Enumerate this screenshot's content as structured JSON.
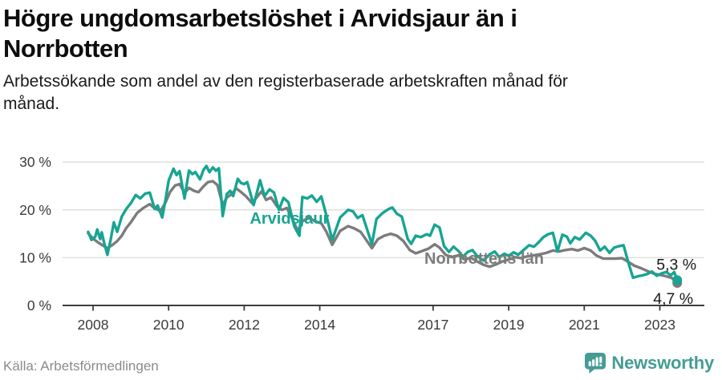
{
  "header": {
    "title": "Högre ungdomsarbetslöshet i Arvidsjaur än i Norrbotten",
    "subtitle": "Arbetssökande som andel av den registerbaserade arbetskraften månad för månad."
  },
  "footer": {
    "source": "Källa: Arbetsförmedlingen",
    "brand": "Newsworthy",
    "brand_color": "#449c94"
  },
  "chart_data": {
    "type": "line",
    "unit": "%",
    "grid": true,
    "x_axis": {
      "ticks": [
        2008,
        2010,
        2012,
        2014,
        2017,
        2019,
        2021,
        2023
      ],
      "labels": [
        "2008",
        "2010",
        "2012",
        "2014",
        "2017",
        "2019",
        "2021",
        "2023"
      ],
      "range_years": [
        2007.2,
        2024.2
      ]
    },
    "y_axis": {
      "ticks": [
        0,
        10,
        20,
        30
      ],
      "labels": [
        "0 %",
        "10 %",
        "20 %",
        "30 %"
      ],
      "range": [
        0,
        33
      ]
    },
    "series": [
      {
        "name": "Arvidsjaur",
        "color": "#18a493",
        "end_label": "5,3 %",
        "end_value": 5.3,
        "points": [
          [
            2007.87,
            15.4
          ],
          [
            2007.96,
            13.7
          ],
          [
            2008.06,
            14.4
          ],
          [
            2008.11,
            15.9
          ],
          [
            2008.19,
            13.9
          ],
          [
            2008.23,
            15.3
          ],
          [
            2008.3,
            12.9
          ],
          [
            2008.38,
            10.6
          ],
          [
            2008.47,
            13.9
          ],
          [
            2008.55,
            17.4
          ],
          [
            2008.64,
            15.4
          ],
          [
            2008.76,
            18.6
          ],
          [
            2008.88,
            20.2
          ],
          [
            2009.0,
            21.4
          ],
          [
            2009.13,
            23.1
          ],
          [
            2009.25,
            22.4
          ],
          [
            2009.38,
            23.4
          ],
          [
            2009.5,
            23.6
          ],
          [
            2009.63,
            20.2
          ],
          [
            2009.71,
            20.9
          ],
          [
            2009.83,
            18.4
          ],
          [
            2009.92,
            22.2
          ],
          [
            2010.0,
            26.1
          ],
          [
            2010.13,
            28.6
          ],
          [
            2010.21,
            27.3
          ],
          [
            2010.29,
            28.1
          ],
          [
            2010.42,
            22.4
          ],
          [
            2010.54,
            28.2
          ],
          [
            2010.63,
            27.5
          ],
          [
            2010.71,
            27.9
          ],
          [
            2010.83,
            26.4
          ],
          [
            2010.92,
            28.3
          ],
          [
            2011.0,
            29.2
          ],
          [
            2011.08,
            27.9
          ],
          [
            2011.17,
            28.9
          ],
          [
            2011.25,
            28.2
          ],
          [
            2011.33,
            28.7
          ],
          [
            2011.43,
            18.7
          ],
          [
            2011.54,
            23.3
          ],
          [
            2011.63,
            24.0
          ],
          [
            2011.71,
            22.9
          ],
          [
            2011.83,
            26.5
          ],
          [
            2011.92,
            25.6
          ],
          [
            2012.0,
            25.4
          ],
          [
            2012.08,
            25.8
          ],
          [
            2012.25,
            21.0
          ],
          [
            2012.42,
            26.2
          ],
          [
            2012.54,
            22.9
          ],
          [
            2012.67,
            24.3
          ],
          [
            2012.79,
            23.6
          ],
          [
            2012.92,
            20.0
          ],
          [
            2013.04,
            22.5
          ],
          [
            2013.17,
            21.6
          ],
          [
            2013.33,
            16.5
          ],
          [
            2013.46,
            14.6
          ],
          [
            2013.54,
            22.7
          ],
          [
            2013.67,
            22.4
          ],
          [
            2013.79,
            23.0
          ],
          [
            2013.92,
            21.7
          ],
          [
            2014.04,
            22.8
          ],
          [
            2014.17,
            19.0
          ],
          [
            2014.33,
            13.7
          ],
          [
            2014.54,
            18.4
          ],
          [
            2014.75,
            20.0
          ],
          [
            2014.88,
            19.7
          ],
          [
            2015.0,
            18.3
          ],
          [
            2015.13,
            18.9
          ],
          [
            2015.38,
            12.8
          ],
          [
            2015.5,
            18.1
          ],
          [
            2015.67,
            19.4
          ],
          [
            2015.83,
            20.2
          ],
          [
            2015.92,
            20.5
          ],
          [
            2016.04,
            19.2
          ],
          [
            2016.17,
            18.6
          ],
          [
            2016.33,
            13.9
          ],
          [
            2016.42,
            12.9
          ],
          [
            2016.54,
            14.6
          ],
          [
            2016.67,
            14.3
          ],
          [
            2016.83,
            14.9
          ],
          [
            2016.92,
            14.6
          ],
          [
            2017.04,
            16.9
          ],
          [
            2017.17,
            16.3
          ],
          [
            2017.29,
            12.4
          ],
          [
            2017.42,
            11.2
          ],
          [
            2017.54,
            12.3
          ],
          [
            2017.67,
            11.4
          ],
          [
            2017.79,
            10.2
          ],
          [
            2017.92,
            11.2
          ],
          [
            2018.04,
            11.6
          ],
          [
            2018.17,
            10.3
          ],
          [
            2018.33,
            9.4
          ],
          [
            2018.5,
            10.7
          ],
          [
            2018.63,
            11.3
          ],
          [
            2018.75,
            10.1
          ],
          [
            2018.88,
            10.8
          ],
          [
            2019.0,
            10.4
          ],
          [
            2019.13,
            11.1
          ],
          [
            2019.25,
            10.6
          ],
          [
            2019.42,
            11.8
          ],
          [
            2019.54,
            12.6
          ],
          [
            2019.67,
            12.3
          ],
          [
            2019.79,
            13.2
          ],
          [
            2019.92,
            14.3
          ],
          [
            2020.04,
            14.9
          ],
          [
            2020.17,
            15.2
          ],
          [
            2020.29,
            11.3
          ],
          [
            2020.42,
            14.8
          ],
          [
            2020.54,
            14.4
          ],
          [
            2020.63,
            13.0
          ],
          [
            2020.75,
            14.3
          ],
          [
            2020.88,
            13.8
          ],
          [
            2021.04,
            15.2
          ],
          [
            2021.17,
            14.6
          ],
          [
            2021.29,
            13.5
          ],
          [
            2021.42,
            11.5
          ],
          [
            2021.54,
            12.3
          ],
          [
            2021.67,
            11.0
          ],
          [
            2021.79,
            12.1
          ],
          [
            2021.92,
            12.4
          ],
          [
            2022.04,
            12.6
          ],
          [
            2022.17,
            8.9
          ],
          [
            2022.29,
            5.8
          ],
          [
            2022.42,
            6.1
          ],
          [
            2022.54,
            6.3
          ],
          [
            2022.67,
            6.6
          ],
          [
            2022.79,
            7.1
          ],
          [
            2022.92,
            6.2
          ],
          [
            2023.04,
            6.7
          ],
          [
            2023.17,
            7.0
          ],
          [
            2023.29,
            6.3
          ],
          [
            2023.38,
            7.0
          ],
          [
            2023.46,
            5.3
          ]
        ]
      },
      {
        "name": "Norrbottens län",
        "color": "#7c7c7c",
        "end_label": "4,7 %",
        "end_value": 4.7,
        "points": [
          [
            2007.87,
            15.1
          ],
          [
            2008.0,
            14.0
          ],
          [
            2008.13,
            13.2
          ],
          [
            2008.25,
            12.6
          ],
          [
            2008.38,
            12.0
          ],
          [
            2008.5,
            12.6
          ],
          [
            2008.63,
            13.4
          ],
          [
            2008.76,
            14.6
          ],
          [
            2008.88,
            16.2
          ],
          [
            2009.0,
            17.4
          ],
          [
            2009.17,
            19.4
          ],
          [
            2009.33,
            20.4
          ],
          [
            2009.5,
            21.2
          ],
          [
            2009.63,
            20.3
          ],
          [
            2009.79,
            19.8
          ],
          [
            2009.92,
            21.6
          ],
          [
            2010.04,
            23.8
          ],
          [
            2010.17,
            25.1
          ],
          [
            2010.29,
            25.4
          ],
          [
            2010.42,
            23.5
          ],
          [
            2010.54,
            24.6
          ],
          [
            2010.67,
            24.0
          ],
          [
            2010.79,
            23.7
          ],
          [
            2010.92,
            24.9
          ],
          [
            2011.04,
            25.8
          ],
          [
            2011.17,
            26.0
          ],
          [
            2011.29,
            25.2
          ],
          [
            2011.43,
            21.0
          ],
          [
            2011.54,
            22.6
          ],
          [
            2011.67,
            23.3
          ],
          [
            2011.79,
            24.5
          ],
          [
            2011.92,
            23.7
          ],
          [
            2012.04,
            22.9
          ],
          [
            2012.21,
            21.4
          ],
          [
            2012.33,
            22.6
          ],
          [
            2012.46,
            23.9
          ],
          [
            2012.58,
            22.1
          ],
          [
            2012.71,
            22.6
          ],
          [
            2012.88,
            20.6
          ],
          [
            2013.0,
            20.0
          ],
          [
            2013.13,
            20.4
          ],
          [
            2013.29,
            17.8
          ],
          [
            2013.42,
            15.6
          ],
          [
            2013.54,
            17.6
          ],
          [
            2013.71,
            18.4
          ],
          [
            2013.88,
            17.6
          ],
          [
            2014.04,
            17.2
          ],
          [
            2014.17,
            15.5
          ],
          [
            2014.33,
            12.7
          ],
          [
            2014.54,
            15.6
          ],
          [
            2014.75,
            16.6
          ],
          [
            2014.92,
            16.1
          ],
          [
            2015.08,
            15.4
          ],
          [
            2015.38,
            12.0
          ],
          [
            2015.54,
            13.9
          ],
          [
            2015.71,
            14.6
          ],
          [
            2015.88,
            15.0
          ],
          [
            2016.04,
            14.6
          ],
          [
            2016.21,
            13.5
          ],
          [
            2016.38,
            11.6
          ],
          [
            2016.54,
            10.9
          ],
          [
            2016.71,
            11.4
          ],
          [
            2016.88,
            11.9
          ],
          [
            2017.04,
            12.8
          ],
          [
            2017.17,
            12.1
          ],
          [
            2017.33,
            10.6
          ],
          [
            2017.5,
            10.1
          ],
          [
            2017.67,
            10.5
          ],
          [
            2017.83,
            9.6
          ],
          [
            2018.0,
            10.0
          ],
          [
            2018.17,
            9.2
          ],
          [
            2018.33,
            8.5
          ],
          [
            2018.5,
            8.1
          ],
          [
            2018.67,
            8.6
          ],
          [
            2018.83,
            9.2
          ],
          [
            2019.0,
            9.6
          ],
          [
            2019.17,
            10.1
          ],
          [
            2019.33,
            9.9
          ],
          [
            2019.5,
            10.3
          ],
          [
            2019.67,
            10.5
          ],
          [
            2019.83,
            10.7
          ],
          [
            2020.0,
            11.0
          ],
          [
            2020.17,
            11.5
          ],
          [
            2020.33,
            11.3
          ],
          [
            2020.5,
            11.6
          ],
          [
            2020.67,
            11.8
          ],
          [
            2020.83,
            11.5
          ],
          [
            2021.0,
            12.0
          ],
          [
            2021.17,
            11.5
          ],
          [
            2021.33,
            10.4
          ],
          [
            2021.5,
            9.8
          ],
          [
            2021.67,
            9.8
          ],
          [
            2021.83,
            9.8
          ],
          [
            2022.0,
            9.9
          ],
          [
            2022.17,
            9.1
          ],
          [
            2022.33,
            8.3
          ],
          [
            2022.5,
            7.8
          ],
          [
            2022.67,
            7.2
          ],
          [
            2022.83,
            6.7
          ],
          [
            2023.0,
            6.4
          ],
          [
            2023.17,
            6.1
          ],
          [
            2023.33,
            5.7
          ],
          [
            2023.46,
            4.7
          ]
        ]
      }
    ],
    "annotations": [
      {
        "text": "Arvidsjaur",
        "color": "#18a493",
        "x": 2013.2,
        "y": 18.3
      },
      {
        "text": "Norrbottens län",
        "color": "#7c7c7c",
        "x": 2018.35,
        "y": 9.9
      }
    ],
    "colors": {
      "gridline": "#dcdcdc",
      "axis": "#3c3c3c",
      "tick_text": "#3a3a3a",
      "end_label_text": "#1a1a1a"
    }
  }
}
